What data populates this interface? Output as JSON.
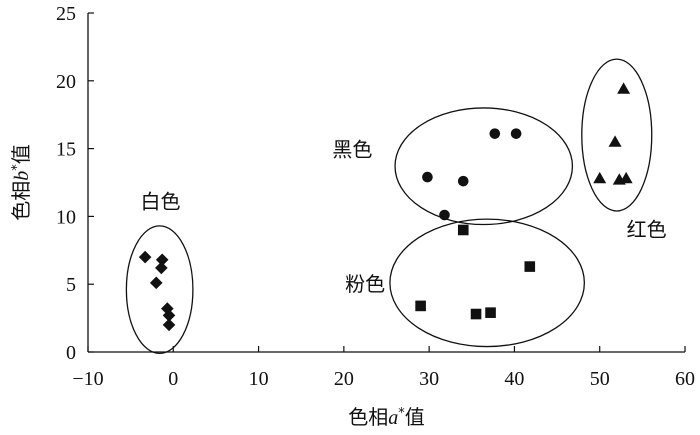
{
  "chart_data": {
    "type": "scatter",
    "title": "",
    "xlabel": "色相a*值",
    "ylabel": "色相b*值",
    "xlabel_parts": {
      "prefix": "色相",
      "var": "a",
      "sup": "*",
      "suffix": "值"
    },
    "ylabel_parts": {
      "prefix": "色相",
      "var": "b",
      "sup": "*",
      "suffix": "值"
    },
    "xlim": [
      -10,
      60
    ],
    "ylim": [
      0,
      25
    ],
    "xticks": [
      -10,
      0,
      10,
      20,
      30,
      40,
      50,
      60
    ],
    "yticks": [
      0,
      5,
      10,
      15,
      20,
      25
    ],
    "grid": false,
    "legend": "none",
    "series": [
      {
        "name": "白色",
        "marker": "diamond",
        "points": [
          {
            "x": -3.3,
            "y": 7.0
          },
          {
            "x": -1.3,
            "y": 6.8
          },
          {
            "x": -1.4,
            "y": 6.2
          },
          {
            "x": -2.0,
            "y": 5.1
          },
          {
            "x": -0.7,
            "y": 3.2
          },
          {
            "x": -0.5,
            "y": 2.7
          },
          {
            "x": -0.5,
            "y": 2.0
          }
        ],
        "group_ellipse": {
          "cx": -1.6,
          "cy": 4.6,
          "rx": 3.9,
          "ry": 4.7
        }
      },
      {
        "name": "黑色",
        "marker": "circle",
        "points": [
          {
            "x": 37.7,
            "y": 16.1
          },
          {
            "x": 40.2,
            "y": 16.1
          },
          {
            "x": 29.8,
            "y": 12.9
          },
          {
            "x": 34.0,
            "y": 12.6
          },
          {
            "x": 31.8,
            "y": 10.1
          }
        ],
        "group_ellipse": {
          "cx": 36.4,
          "cy": 13.7,
          "rx": 10.4,
          "ry": 4.3
        }
      },
      {
        "name": "粉色",
        "marker": "square",
        "points": [
          {
            "x": 34.0,
            "y": 9.0
          },
          {
            "x": 41.8,
            "y": 6.3
          },
          {
            "x": 29.0,
            "y": 3.4
          },
          {
            "x": 35.5,
            "y": 2.8
          },
          {
            "x": 37.2,
            "y": 2.9
          }
        ],
        "group_ellipse": {
          "cx": 36.8,
          "cy": 5.1,
          "rx": 11.4,
          "ry": 4.7
        }
      },
      {
        "name": "红色",
        "marker": "triangle",
        "points": [
          {
            "x": 52.8,
            "y": 19.4
          },
          {
            "x": 51.8,
            "y": 15.5
          },
          {
            "x": 50.0,
            "y": 12.8
          },
          {
            "x": 52.3,
            "y": 12.7
          },
          {
            "x": 53.1,
            "y": 12.8
          }
        ],
        "group_ellipse": {
          "cx": 52.0,
          "cy": 16.0,
          "rx": 4.1,
          "ry": 5.6
        }
      }
    ],
    "annotations": [
      {
        "text": "白色",
        "x": -1.5,
        "y": 10.6
      },
      {
        "text": "黑色",
        "x": 21.0,
        "y": 14.4
      },
      {
        "text": "粉色",
        "x": 22.5,
        "y": 4.5
      },
      {
        "text": "红色",
        "x": 55.5,
        "y": 8.5
      }
    ]
  }
}
